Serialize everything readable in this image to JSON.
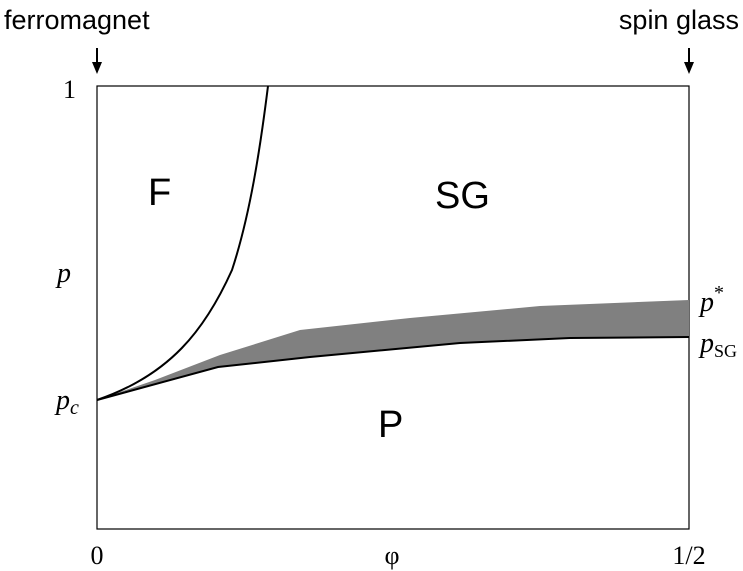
{
  "top_labels": {
    "left": "ferromagnet",
    "right": "spin glass"
  },
  "axes": {
    "x_label": "φ",
    "x_tick_min": "0",
    "x_tick_max": "1/2",
    "y_tick_max": "1",
    "y_label": "p",
    "y_pc_main": "p",
    "y_pc_sub": "c"
  },
  "regions": {
    "ferro": "F",
    "spin_glass": "SG",
    "para": "P"
  },
  "right_labels": {
    "pstar_main": "p",
    "pstar_sup": "*",
    "psg_main": "p",
    "psg_sub": "SG"
  },
  "colors": {
    "band_fill": "#808080",
    "line": "#000000"
  }
}
